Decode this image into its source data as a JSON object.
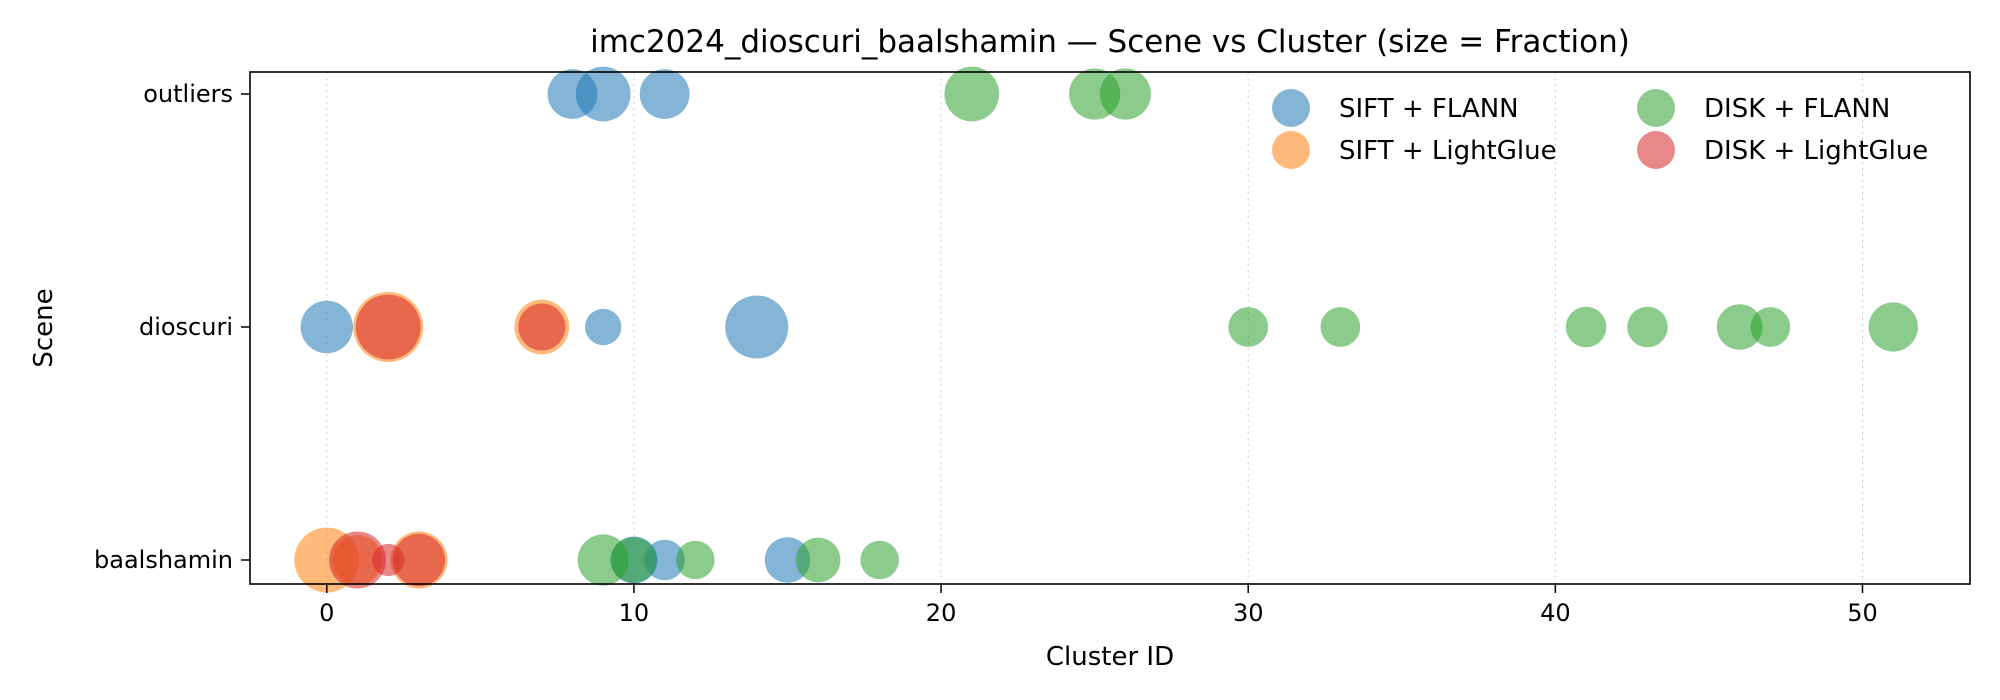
{
  "chart_data": {
    "type": "scatter",
    "title": "imc2024_dioscuri_baalshamin — Scene vs Cluster (size = Fraction)",
    "xlabel": "Cluster ID",
    "ylabel": "Scene",
    "xlim": [
      -2.5,
      53.5
    ],
    "xticks": [
      0,
      10,
      20,
      30,
      40,
      50
    ],
    "categories": [
      "baalshamin",
      "dioscuri",
      "outliers"
    ],
    "grid": "x-dotted",
    "legend_position": "top-right",
    "series": [
      {
        "name": "SIFT + FLANN",
        "color": "#1f77b4",
        "points": [
          {
            "x": 8,
            "y": "outliers",
            "fraction": 0.06
          },
          {
            "x": 9,
            "y": "outliers",
            "fraction": 0.08
          },
          {
            "x": 11,
            "y": "outliers",
            "fraction": 0.06
          },
          {
            "x": 0,
            "y": "dioscuri",
            "fraction": 0.07
          },
          {
            "x": 9,
            "y": "dioscuri",
            "fraction": 0.02
          },
          {
            "x": 14,
            "y": "dioscuri",
            "fraction": 0.12
          },
          {
            "x": 10,
            "y": "baalshamin",
            "fraction": 0.05
          },
          {
            "x": 11,
            "y": "baalshamin",
            "fraction": 0.03
          },
          {
            "x": 15,
            "y": "baalshamin",
            "fraction": 0.045
          }
        ]
      },
      {
        "name": "SIFT + LightGlue",
        "color": "#ff7f0e",
        "points": [
          {
            "x": 2,
            "y": "dioscuri",
            "fraction": 0.16
          },
          {
            "x": 7,
            "y": "dioscuri",
            "fraction": 0.08
          },
          {
            "x": 0,
            "y": "baalshamin",
            "fraction": 0.13
          },
          {
            "x": 1,
            "y": "baalshamin",
            "fraction": 0.06
          },
          {
            "x": 3,
            "y": "baalshamin",
            "fraction": 0.09
          }
        ]
      },
      {
        "name": "DISK + FLANN",
        "color": "#2ca02c",
        "points": [
          {
            "x": 21,
            "y": "outliers",
            "fraction": 0.08
          },
          {
            "x": 25,
            "y": "outliers",
            "fraction": 0.065
          },
          {
            "x": 26,
            "y": "outliers",
            "fraction": 0.065
          },
          {
            "x": 30,
            "y": "dioscuri",
            "fraction": 0.028
          },
          {
            "x": 33,
            "y": "dioscuri",
            "fraction": 0.028
          },
          {
            "x": 41,
            "y": "dioscuri",
            "fraction": 0.03
          },
          {
            "x": 43,
            "y": "dioscuri",
            "fraction": 0.03
          },
          {
            "x": 46,
            "y": "dioscuri",
            "fraction": 0.045
          },
          {
            "x": 47,
            "y": "dioscuri",
            "fraction": 0.028
          },
          {
            "x": 51,
            "y": "dioscuri",
            "fraction": 0.058
          },
          {
            "x": 9,
            "y": "baalshamin",
            "fraction": 0.065
          },
          {
            "x": 10,
            "y": "baalshamin",
            "fraction": 0.045
          },
          {
            "x": 12,
            "y": "baalshamin",
            "fraction": 0.025
          },
          {
            "x": 16,
            "y": "baalshamin",
            "fraction": 0.042
          },
          {
            "x": 18,
            "y": "baalshamin",
            "fraction": 0.025
          }
        ]
      },
      {
        "name": "DISK + LightGlue",
        "color": "#d62728",
        "points": [
          {
            "x": 2,
            "y": "dioscuri",
            "fraction": 0.13
          },
          {
            "x": 7,
            "y": "dioscuri",
            "fraction": 0.05
          },
          {
            "x": 1,
            "y": "baalshamin",
            "fraction": 0.09
          },
          {
            "x": 2,
            "y": "baalshamin",
            "fraction": 0.012
          },
          {
            "x": 3,
            "y": "baalshamin",
            "fraction": 0.07
          }
        ]
      }
    ]
  }
}
